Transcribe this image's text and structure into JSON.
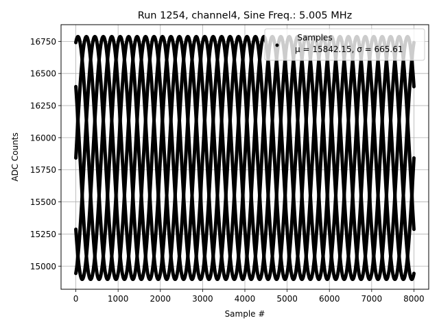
{
  "chart_data": {
    "type": "scatter",
    "title": "Run 1254, channel4, Sine Freq.: 5.005 MHz",
    "xlabel": "Sample #",
    "ylabel": "ADC Counts",
    "xlim": [
      -350,
      8350
    ],
    "ylim": [
      14820,
      16880
    ],
    "xticks": [
      0,
      1000,
      2000,
      3000,
      4000,
      5000,
      6000,
      7000,
      8000
    ],
    "xtick_labels": [
      "0",
      "1000",
      "2000",
      "3000",
      "4000",
      "5000",
      "6000",
      "7000",
      "8000"
    ],
    "yticks": [
      15000,
      15250,
      15500,
      15750,
      16000,
      16250,
      16500,
      16750
    ],
    "ytick_labels": [
      "15000",
      "15250",
      "15500",
      "15750",
      "16000",
      "16250",
      "16500",
      "16750"
    ],
    "grid": true,
    "legend": {
      "placement": "top-right",
      "title": "Samples",
      "entries": [
        "μ = 15842.15, σ = 665.61"
      ]
    },
    "series": [
      {
        "name": "Samples",
        "color": "#000000",
        "mean": 15842.15,
        "amplitude": 945,
        "period_samples": 1000,
        "phase_offsets_samples": [
          0,
          200,
          400,
          600,
          800
        ],
        "x_range": [
          0,
          8000
        ],
        "peak_x": 650
      }
    ]
  }
}
